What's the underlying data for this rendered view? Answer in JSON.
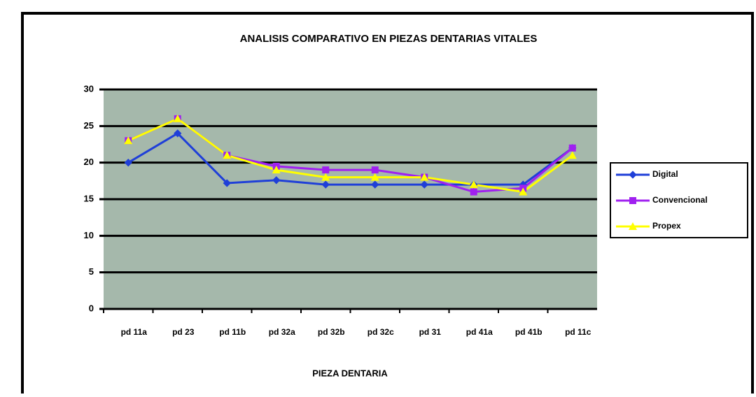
{
  "chart_data": {
    "type": "line",
    "title": "ANALISIS COMPARATIVO EN PIEZAS DENTARIAS VITALES",
    "x_label": "PIEZA DENTARIA",
    "categories": [
      "pd 11a",
      "pd 23",
      "pd 11b",
      "pd 32a",
      "pd 32b",
      "pd 32c",
      "pd 31",
      "pd 41a",
      "pd 41b",
      "pd 11c"
    ],
    "series": [
      {
        "name": "Digital",
        "color": "#1f3fd8",
        "values": [
          20,
          24,
          17.2,
          17.6,
          17,
          17,
          17,
          17,
          17,
          22
        ]
      },
      {
        "name": "Convencional",
        "color": "#a020f0",
        "values": [
          23,
          26,
          21,
          19.5,
          19,
          19,
          18,
          16,
          16.5,
          22
        ]
      },
      {
        "name": "Propex",
        "color": "#ffff00",
        "values": [
          23,
          26,
          21,
          19,
          18,
          18,
          18,
          17,
          16,
          21
        ]
      }
    ],
    "ylim": [
      0,
      30
    ],
    "yticks": [
      0,
      5,
      10,
      15,
      20,
      25,
      30
    ],
    "grid": true,
    "legend": "right"
  }
}
